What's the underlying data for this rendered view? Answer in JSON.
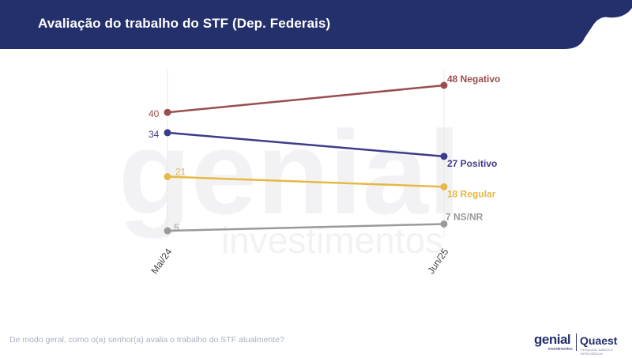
{
  "header": {
    "title": "Avaliação do trabalho do STF (Dep. Federais)"
  },
  "watermark": {
    "line1": "genial",
    "line2": "investimentos"
  },
  "footer": {
    "question": "De modo geral, como o(a) senhor(a) avalia o trabalho do STF atualmente?",
    "logo_genial": "genial",
    "logo_genial_sub": "investimentos",
    "logo_quaest": "Quaest",
    "logo_quaest_sub": "PESQUISA, DADOS & INTELIGÊNCIA"
  },
  "colors": {
    "header": "#24306b",
    "negativo": "#9a4e4e",
    "positivo": "#3d3c8a",
    "regular": "#e6b845",
    "nsnr": "#9a9a9a",
    "gridline": "#e8e8e8"
  },
  "chart_data": {
    "type": "line",
    "categories": [
      "Mai/24",
      "Jun/25"
    ],
    "ylim": [
      0,
      55
    ],
    "grid": false,
    "series": [
      {
        "name": "Negativo",
        "values": [
          40,
          48
        ],
        "start_label": "40",
        "end_label": "48 Negativo",
        "color": "#9a4e4e"
      },
      {
        "name": "Positivo",
        "values": [
          34,
          27
        ],
        "start_label": "34",
        "end_label": "27 Positivo",
        "color": "#3d3c8a"
      },
      {
        "name": "Regular",
        "values": [
          21,
          18
        ],
        "start_label": "21",
        "end_label": "18 Regular",
        "color": "#e6b845"
      },
      {
        "name": "NS/NR",
        "values": [
          5,
          7
        ],
        "start_label": "5",
        "end_label": "7 NS/NR",
        "color": "#9a9a9a"
      }
    ]
  }
}
